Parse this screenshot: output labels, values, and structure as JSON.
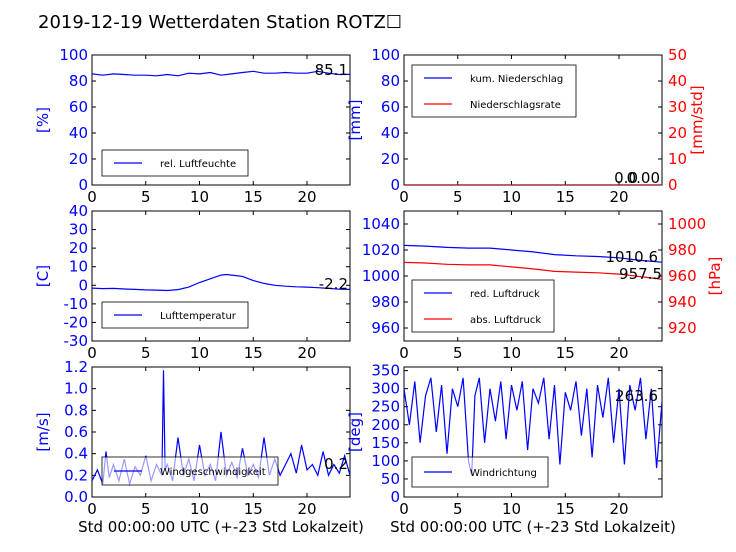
{
  "title": "2019-12-19 Wetterdaten Station ROTZ☐",
  "xlabel": "Std 00:00:00 UTC (+-23 Std Lokalzeit)",
  "colors": {
    "primary": "#0000ff",
    "secondary": "#ff0000",
    "axis": "#000000"
  },
  "chart_data": [
    {
      "type": "line",
      "ylabel": "[%]",
      "xlim": [
        0,
        24
      ],
      "ylim": [
        0,
        100
      ],
      "xticks": [
        0,
        5,
        10,
        15,
        20
      ],
      "yticks": [
        0,
        20,
        40,
        60,
        80,
        100
      ],
      "legend": "bottom-left",
      "series": [
        {
          "name": "rel. Luftfeuchte",
          "color": "#0000ff",
          "x": [
            0,
            1,
            2,
            3,
            4,
            5,
            6,
            7,
            8,
            9,
            10,
            11,
            12,
            13,
            14,
            15,
            16,
            17,
            18,
            19,
            20,
            21,
            22,
            23,
            24
          ],
          "y": [
            85.5,
            84.5,
            85.5,
            85,
            84.5,
            84.5,
            84,
            85,
            84,
            86,
            85.5,
            86.5,
            84.5,
            85.5,
            86.5,
            87.5,
            86,
            86,
            86.5,
            86,
            86,
            87.5,
            86,
            85,
            85.1
          ]
        }
      ],
      "current_value": "85.1"
    },
    {
      "type": "line",
      "ylabel": "[mm]",
      "ylabel_right": "[mm/std]",
      "xlim": [
        0,
        24
      ],
      "ylim": [
        0,
        100
      ],
      "ylim_right": [
        0,
        50
      ],
      "xticks": [
        0,
        5,
        10,
        15,
        20
      ],
      "yticks": [
        0,
        20,
        40,
        60,
        80,
        100
      ],
      "yticks_right": [
        0,
        10,
        20,
        30,
        40,
        50
      ],
      "legend": "top-left",
      "series": [
        {
          "name": "kum. Niederschlag",
          "color": "#0000ff",
          "x": [
            0,
            24
          ],
          "y": [
            0,
            0
          ]
        },
        {
          "name": "Niederschlagsrate",
          "color": "#ff0000",
          "axis": "right",
          "x": [
            0,
            24
          ],
          "y": [
            0,
            0
          ]
        }
      ],
      "current_value": "0.00",
      "current_value_right": "0.0"
    },
    {
      "type": "line",
      "ylabel": "[C]",
      "xlim": [
        0,
        24
      ],
      "ylim": [
        -30,
        40
      ],
      "xticks": [
        0,
        5,
        10,
        15,
        20
      ],
      "yticks": [
        -30,
        -20,
        -10,
        0,
        10,
        20,
        30,
        40
      ],
      "legend": "bottom-left",
      "series": [
        {
          "name": "Lufttemperatur",
          "color": "#0000ff",
          "x": [
            0,
            1,
            2,
            3,
            4,
            5,
            6,
            7,
            8,
            9,
            10,
            11,
            12,
            12.5,
            13,
            14,
            15,
            16,
            17,
            18,
            19,
            20,
            21,
            22,
            23,
            24
          ],
          "y": [
            -1.5,
            -1.8,
            -1.7,
            -2,
            -2.2,
            -2.5,
            -2.6,
            -2.8,
            -2.3,
            -1,
            1.5,
            3.5,
            5.5,
            5.8,
            5.5,
            4.8,
            2.5,
            1,
            0,
            -0.5,
            -0.8,
            -1,
            -1.3,
            -1.7,
            -2.1,
            -2.2
          ]
        }
      ],
      "current_value": "-2.2"
    },
    {
      "type": "line",
      "ylabel_right": "[hPa]",
      "xlim": [
        0,
        24
      ],
      "ylim": [
        950,
        1050
      ],
      "ylim_right": [
        910,
        1010
      ],
      "xticks": [
        0,
        5,
        10,
        15,
        20
      ],
      "yticks": [
        960,
        980,
        1000,
        1020,
        1040
      ],
      "yticks_right": [
        920,
        940,
        960,
        980,
        1000
      ],
      "legend": "bottom-left",
      "series": [
        {
          "name": "red. Luftdruck",
          "color": "#0000ff",
          "x": [
            0,
            2,
            4,
            6,
            8,
            10,
            12,
            14,
            16,
            18,
            20,
            22,
            24
          ],
          "y": [
            1023.5,
            1023,
            1022,
            1021.5,
            1021.5,
            1020,
            1018.5,
            1016.5,
            1015.5,
            1015,
            1014,
            1012,
            1010.6
          ]
        },
        {
          "name": "abs. Luftdruck",
          "color": "#ff0000",
          "axis": "right",
          "x": [
            0,
            2,
            4,
            6,
            8,
            10,
            12,
            14,
            16,
            18,
            20,
            22,
            24
          ],
          "y": [
            970.5,
            970,
            969,
            968.5,
            968.5,
            967,
            965.5,
            963.5,
            963,
            962.5,
            961.5,
            959.5,
            957.5
          ]
        }
      ],
      "current_value": "1010.6",
      "current_value_right": "957.5"
    },
    {
      "type": "line",
      "ylabel": "[m/s]",
      "xlim": [
        0,
        24
      ],
      "ylim": [
        0,
        1.2
      ],
      "xticks": [
        0,
        5,
        10,
        15,
        20
      ],
      "yticks": [
        0.0,
        0.2,
        0.4,
        0.6,
        0.8,
        1.0,
        1.2
      ],
      "legend": "bottom-left",
      "series": [
        {
          "name": "Windgeschwindigkeit",
          "color": "#0000ff",
          "x": [
            0,
            0.5,
            1,
            1.3,
            1.6,
            2,
            2.5,
            3,
            3.5,
            4,
            4.5,
            5,
            5.5,
            6,
            6.5,
            6.65,
            6.8,
            7,
            7.5,
            8,
            8.5,
            9,
            9.5,
            10,
            10.5,
            11,
            11.5,
            12,
            12.5,
            13,
            13.5,
            14,
            14.5,
            15,
            15.5,
            16,
            16.5,
            17,
            17.5,
            18,
            18.5,
            19,
            19.5,
            20,
            20.5,
            21,
            21.5,
            22,
            22.5,
            23,
            23.5,
            24
          ],
          "y": [
            0.15,
            0.25,
            0.12,
            0.42,
            0.18,
            0.3,
            0.15,
            0.35,
            0.12,
            0.28,
            0.2,
            0.38,
            0.15,
            0.3,
            0.2,
            1.17,
            0.25,
            0.3,
            0.15,
            0.55,
            0.2,
            0.35,
            0.15,
            0.48,
            0.2,
            0.3,
            0.15,
            0.6,
            0.2,
            0.32,
            0.18,
            0.45,
            0.2,
            0.3,
            0.18,
            0.55,
            0.2,
            0.35,
            0.2,
            0.3,
            0.4,
            0.22,
            0.48,
            0.25,
            0.3,
            0.2,
            0.42,
            0.2,
            0.3,
            0.22,
            0.38,
            0.2
          ]
        }
      ],
      "current_value": "0.2"
    },
    {
      "type": "line",
      "ylabel": "[deg]",
      "xlim": [
        0,
        24
      ],
      "ylim": [
        0,
        360
      ],
      "xticks": [
        0,
        5,
        10,
        15,
        20
      ],
      "yticks": [
        0,
        50,
        100,
        150,
        200,
        250,
        300,
        350
      ],
      "legend": "bottom-left",
      "series": [
        {
          "name": "Windrichtung",
          "color": "#0000ff",
          "x": [
            0,
            0.5,
            1,
            1.5,
            2,
            2.5,
            3,
            3.5,
            4,
            4.5,
            5,
            5.5,
            6,
            6.3,
            6.6,
            7,
            7.5,
            8,
            8.5,
            9,
            9.5,
            10,
            10.5,
            11,
            11.5,
            12,
            12.5,
            13,
            13.5,
            14,
            14.5,
            15,
            15.5,
            16,
            16.5,
            17,
            17.5,
            18,
            18.5,
            19,
            19.5,
            20,
            20.5,
            21,
            21.5,
            22,
            22.5,
            23,
            23.5,
            24
          ],
          "y": [
            300,
            200,
            320,
            150,
            280,
            330,
            180,
            310,
            120,
            300,
            250,
            330,
            100,
            60,
            280,
            330,
            150,
            300,
            210,
            320,
            160,
            310,
            240,
            320,
            130,
            300,
            260,
            330,
            160,
            310,
            90,
            290,
            240,
            320,
            170,
            300,
            110,
            310,
            220,
            330,
            150,
            300,
            90,
            310,
            240,
            330,
            160,
            300,
            80,
            263.6
          ]
        }
      ],
      "current_value": "263.6"
    }
  ]
}
